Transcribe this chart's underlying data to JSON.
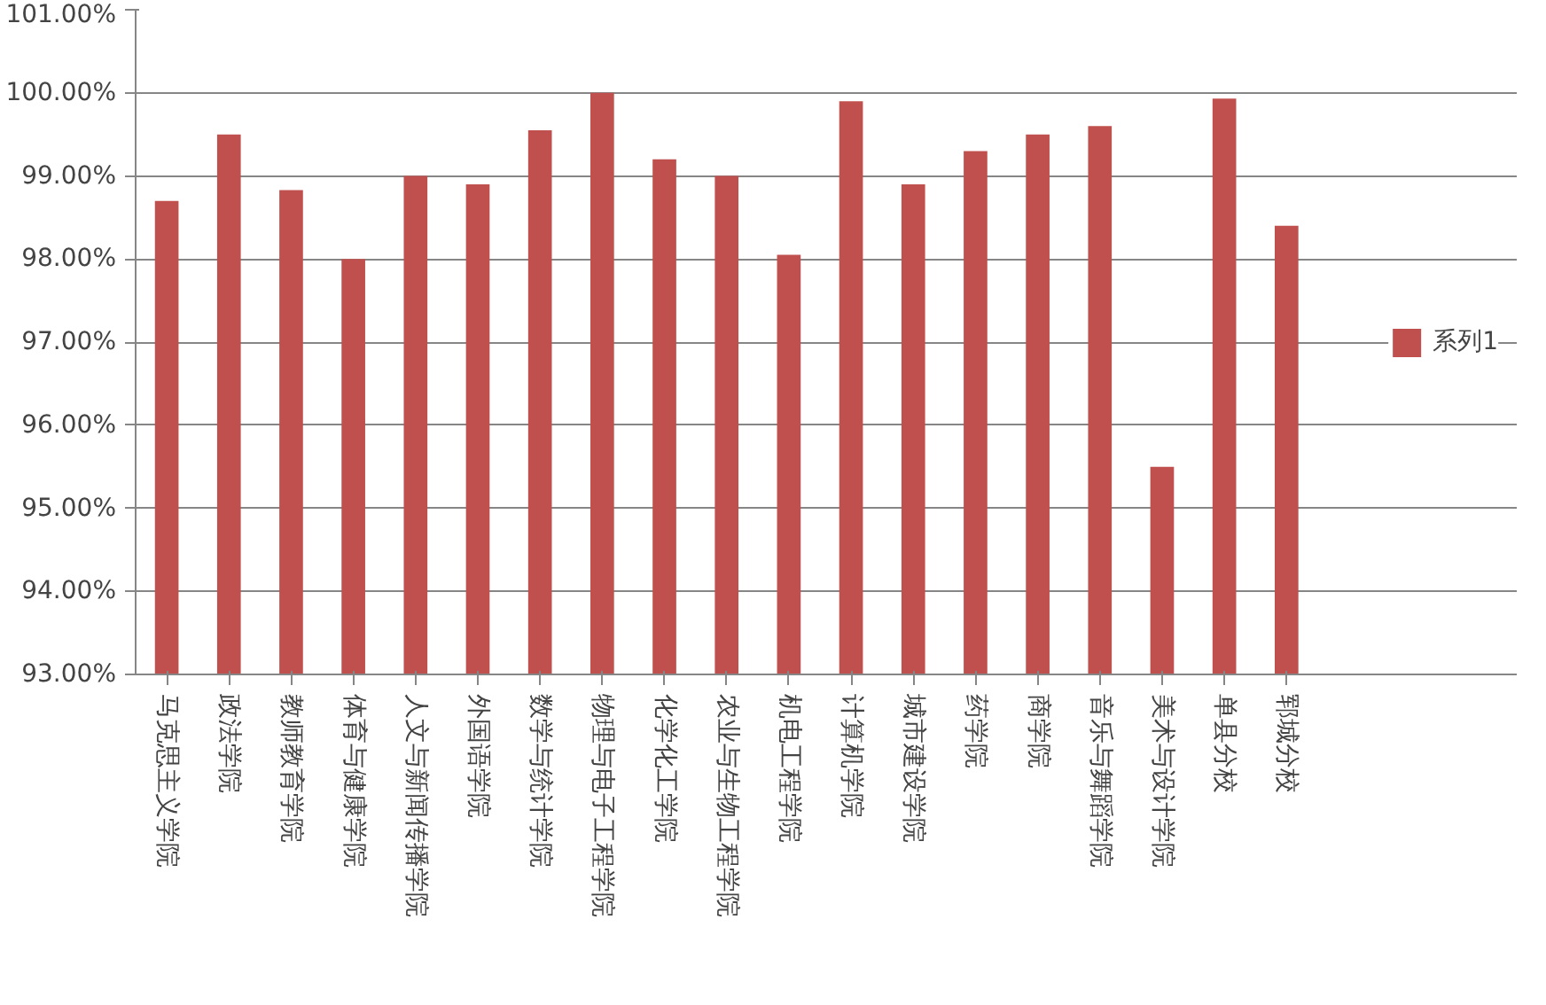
{
  "chart_data": {
    "type": "bar",
    "categories": [
      "马克思主义学院",
      "政法学院",
      "教师教育学院",
      "体育与健康学院",
      "人文与新闻传播学院",
      "外国语学院",
      "数学与统计学院",
      "物理与电子工程学院",
      "化学化工学院",
      "农业与生物工程学院",
      "机电工程学院",
      "计算机学院",
      "城市建设学院",
      "药学院",
      "商学院",
      "音乐与舞蹈学院",
      "美术与设计学院",
      "单县分校",
      "郓城分校"
    ],
    "series": [
      {
        "name": "系列1",
        "color": "#c0504d",
        "values": [
          98.7,
          99.5,
          98.83,
          98.0,
          99.0,
          98.9,
          99.55,
          100.0,
          99.2,
          99.0,
          98.05,
          99.9,
          98.9,
          99.3,
          99.5,
          99.6,
          95.5,
          99.93,
          98.4
        ]
      }
    ],
    "ylim": [
      93,
      101
    ],
    "yticks": [
      {
        "value": 93,
        "label": "93.00%"
      },
      {
        "value": 94,
        "label": "94.00%"
      },
      {
        "value": 95,
        "label": "95.00%"
      },
      {
        "value": 96,
        "label": "96.00%"
      },
      {
        "value": 97,
        "label": "97.00%"
      },
      {
        "value": 98,
        "label": "98.00%"
      },
      {
        "value": 99,
        "label": "99.00%"
      },
      {
        "value": 100,
        "label": "100.00%"
      },
      {
        "value": 101,
        "label": "101.00%"
      }
    ],
    "grid": "y",
    "legend": "right"
  }
}
